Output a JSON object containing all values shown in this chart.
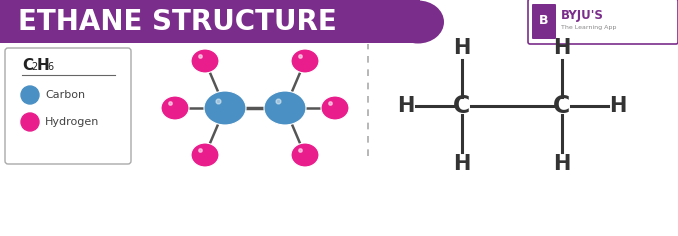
{
  "title": "ETHANE STRUCTURE",
  "title_bg_color": "#7B2D8B",
  "title_text_color": "#FFFFFF",
  "background_color": "#FFFFFF",
  "carbon_color": "#4A90C4",
  "hydrogen_color": "#E91E8C",
  "bond_color": "#555555",
  "legend_box_color": "#FFFFFF",
  "legend_border_color": "#AAAAAA",
  "legend_carbon": "Carbon",
  "legend_hydrogen": "Hydrogen",
  "skeletal_color": "#333333",
  "dashed_line_color": "#AAAAAA",
  "byju_purple": "#7B2D8B"
}
